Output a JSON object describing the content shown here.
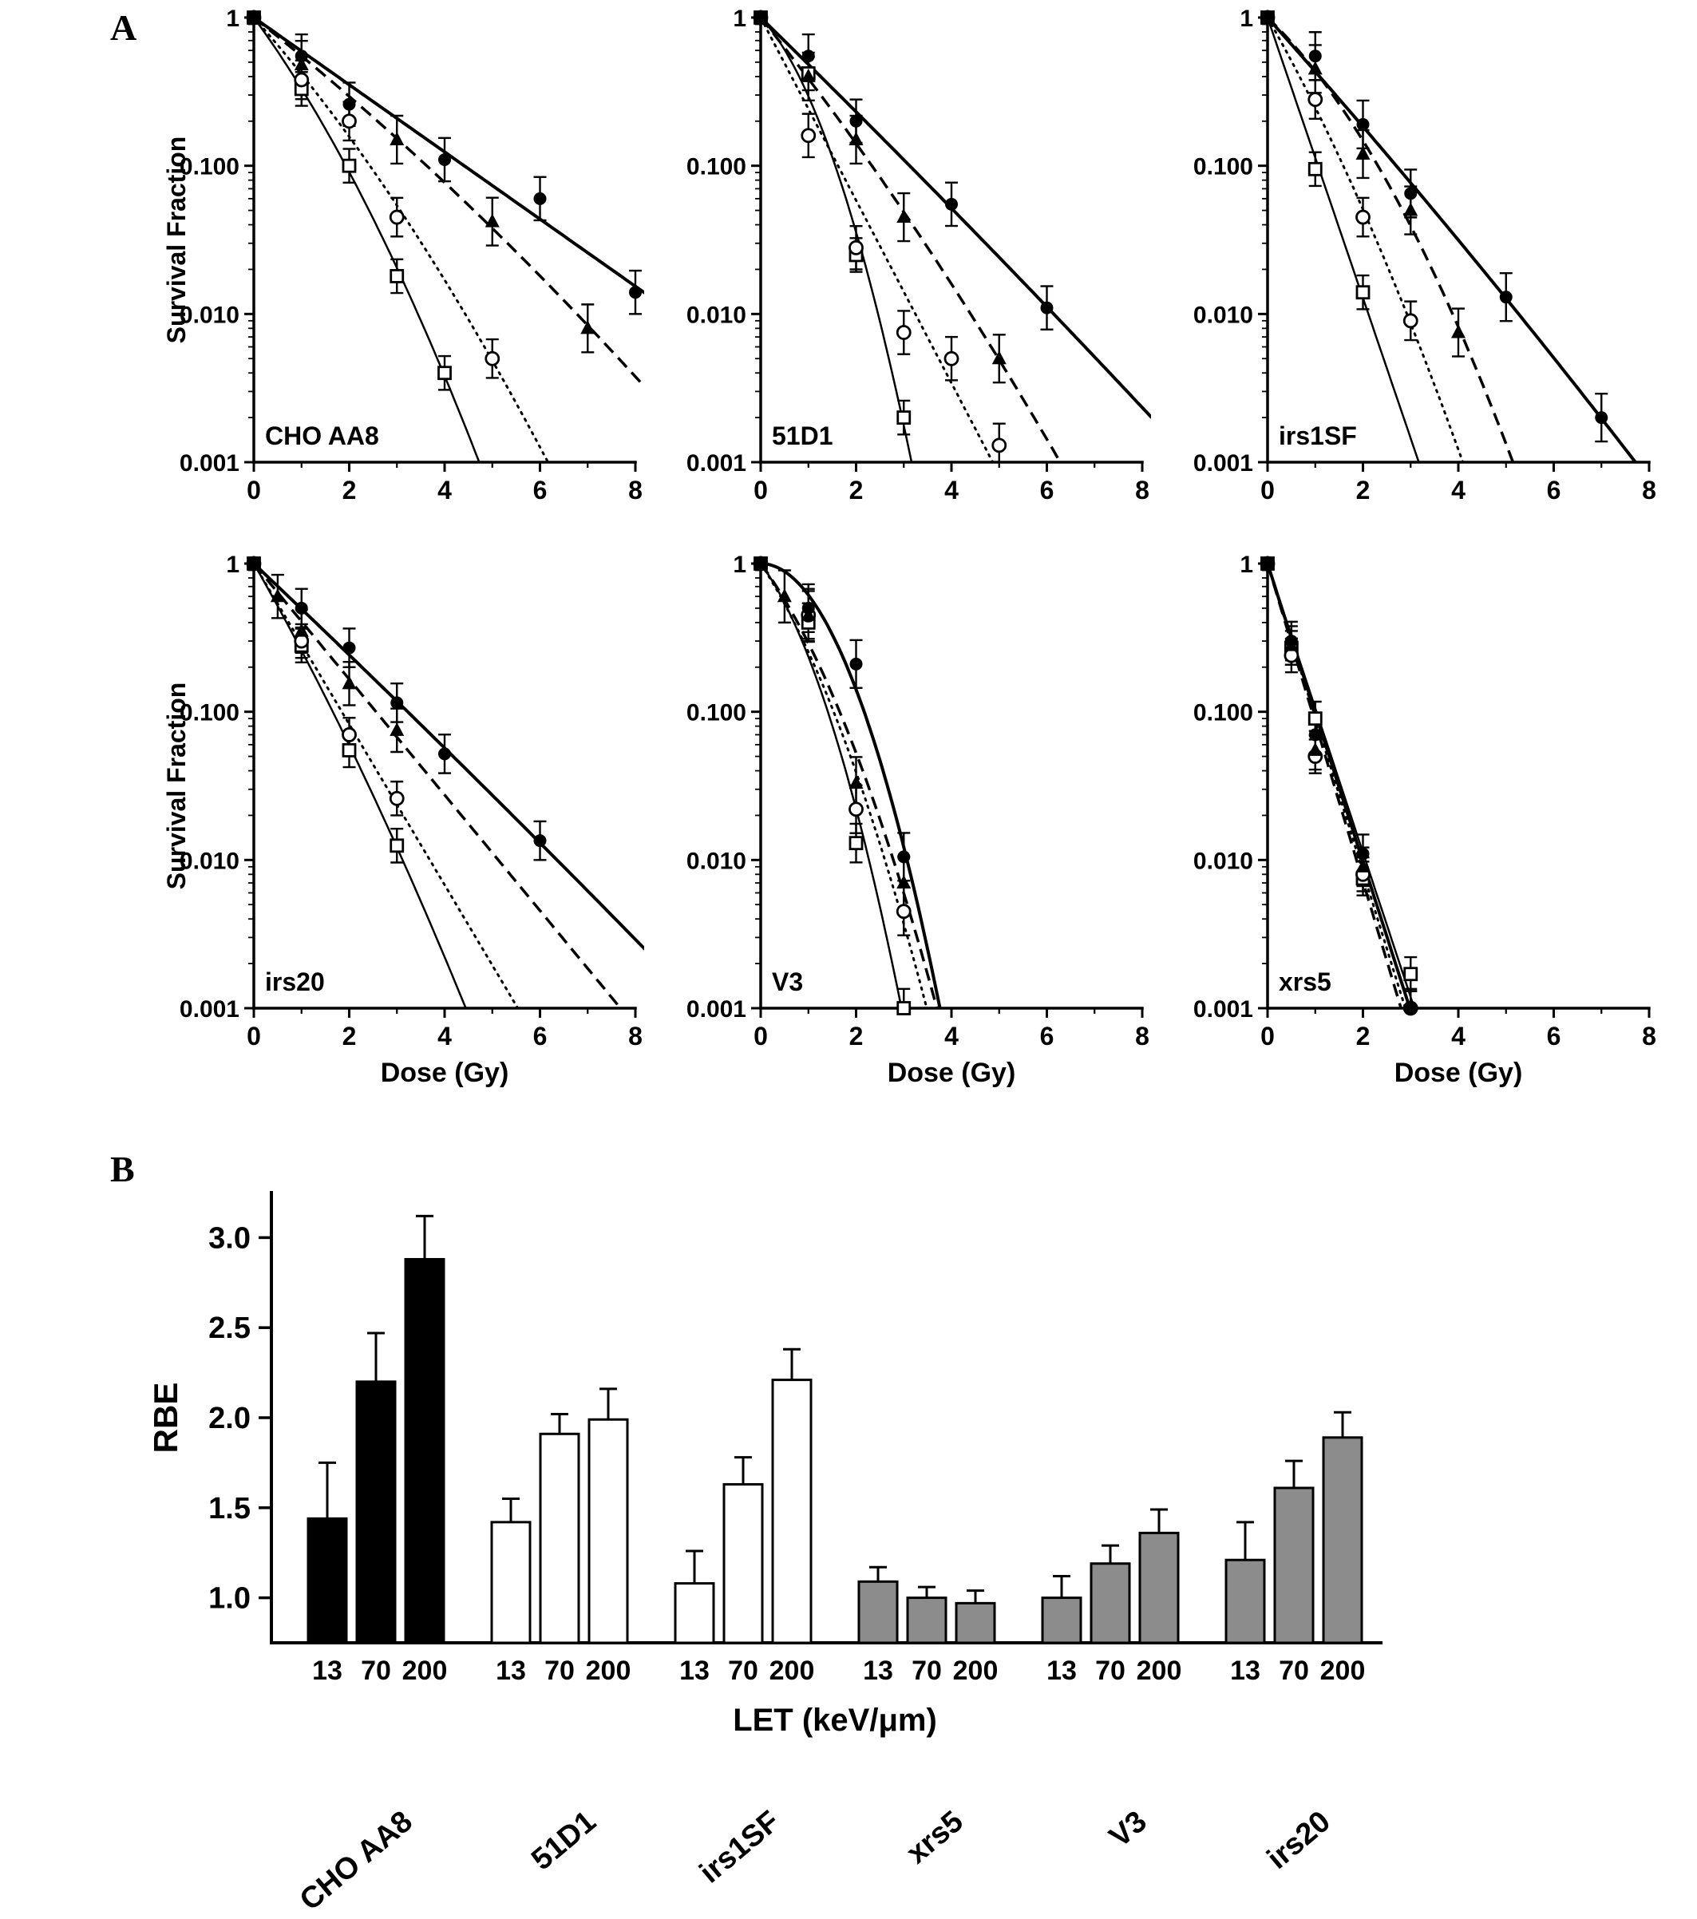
{
  "panels": {
    "a_label": "A",
    "b_label": "B"
  },
  "chart_data": [
    {
      "type": "line",
      "id": "cho-aa8",
      "title": "CHO AA8",
      "ylabel": "Survival Fraction",
      "show_ylabel": true,
      "show_xlabel": false,
      "xlabel": "",
      "xlim": [
        0,
        8
      ],
      "ylim": [
        0.001,
        1
      ],
      "yscale": "log",
      "xticks": [
        0,
        2,
        4,
        6,
        8
      ],
      "yticks": [
        1,
        0.1,
        0.01,
        0.001
      ],
      "ytick_labels": [
        "1",
        "0.100",
        "0.010",
        "0.001"
      ],
      "series": [
        {
          "name": "filled-circle-solid",
          "marker": "filled-circle",
          "line": "solid-thick",
          "x": [
            0,
            1,
            2,
            4,
            6,
            8
          ],
          "y": [
            1,
            0.55,
            0.26,
            0.11,
            0.06,
            0.014
          ],
          "err": 0.4
        },
        {
          "name": "filled-triangle-dashed",
          "marker": "filled-triangle",
          "line": "dashed",
          "x": [
            0,
            1,
            3,
            5,
            7
          ],
          "y": [
            1,
            0.48,
            0.15,
            0.042,
            0.008
          ],
          "err": 0.45
        },
        {
          "name": "open-circle-dotted",
          "marker": "open-circle",
          "line": "dotted",
          "x": [
            0,
            1,
            2,
            3,
            5
          ],
          "y": [
            1,
            0.38,
            0.2,
            0.045,
            0.005
          ],
          "err": 0.35
        },
        {
          "name": "open-square-solid",
          "marker": "open-square",
          "line": "solid-thin",
          "x": [
            0,
            1,
            2,
            3,
            4
          ],
          "y": [
            1,
            0.33,
            0.1,
            0.018,
            0.004
          ],
          "err": 0.3
        }
      ]
    },
    {
      "type": "line",
      "id": "51d1",
      "title": "51D1",
      "show_ylabel": false,
      "show_xlabel": false,
      "ylabel": "",
      "xlabel": "",
      "xlim": [
        0,
        8
      ],
      "ylim": [
        0.001,
        1
      ],
      "yscale": "log",
      "xticks": [
        0,
        2,
        4,
        6,
        8
      ],
      "yticks": [
        1,
        0.1,
        0.01,
        0.001
      ],
      "ytick_labels": [
        "1",
        "0.100",
        "0.010",
        "0.001"
      ],
      "series": [
        {
          "name": "filled-circle-solid",
          "marker": "filled-circle",
          "line": "solid-thick",
          "x": [
            0,
            1,
            2,
            4,
            6
          ],
          "y": [
            1,
            0.55,
            0.2,
            0.055,
            0.011
          ],
          "err": 0.4
        },
        {
          "name": "filled-triangle-dashed",
          "marker": "filled-triangle",
          "line": "dashed",
          "x": [
            0,
            1,
            2,
            3,
            5
          ],
          "y": [
            1,
            0.4,
            0.15,
            0.045,
            0.005
          ],
          "err": 0.45
        },
        {
          "name": "open-circle-dotted",
          "marker": "open-circle",
          "line": "dotted",
          "x": [
            0,
            1,
            2,
            3,
            4,
            5
          ],
          "y": [
            1,
            0.16,
            0.028,
            0.0075,
            0.005,
            0.0013
          ],
          "err": 0.4
        },
        {
          "name": "open-square-solid",
          "marker": "open-square",
          "line": "solid-thin",
          "x": [
            0,
            1,
            2,
            3
          ],
          "y": [
            1,
            0.42,
            0.025,
            0.002
          ],
          "err": 0.3
        }
      ]
    },
    {
      "type": "line",
      "id": "irs1sf",
      "title": "irs1SF",
      "show_ylabel": false,
      "show_xlabel": false,
      "ylabel": "",
      "xlabel": "",
      "xlim": [
        0,
        8
      ],
      "ylim": [
        0.001,
        1
      ],
      "yscale": "log",
      "xticks": [
        0,
        2,
        4,
        6,
        8
      ],
      "yticks": [
        1,
        0.1,
        0.01,
        0.001
      ],
      "ytick_labels": [
        "1",
        "0.100",
        "0.010",
        "0.001"
      ],
      "series": [
        {
          "name": "filled-circle-solid",
          "marker": "filled-circle",
          "line": "solid-thick",
          "x": [
            0,
            1,
            2,
            3,
            5,
            7
          ],
          "y": [
            1,
            0.55,
            0.19,
            0.065,
            0.013,
            0.002
          ],
          "err": 0.45
        },
        {
          "name": "filled-triangle-dashed",
          "marker": "filled-triangle",
          "line": "dashed",
          "x": [
            0,
            1,
            2,
            3,
            4
          ],
          "y": [
            1,
            0.45,
            0.12,
            0.05,
            0.0075
          ],
          "err": 0.45
        },
        {
          "name": "open-circle-dotted",
          "marker": "open-circle",
          "line": "dotted",
          "x": [
            0,
            1,
            2,
            3
          ],
          "y": [
            1,
            0.28,
            0.045,
            0.009
          ],
          "err": 0.35
        },
        {
          "name": "open-square-solid",
          "marker": "open-square",
          "line": "solid-thin",
          "x": [
            0,
            1,
            2
          ],
          "y": [
            1,
            0.095,
            0.014
          ],
          "err": 0.3
        }
      ]
    },
    {
      "type": "line",
      "id": "irs20",
      "title": "irs20",
      "ylabel": "Survival Fraction",
      "show_ylabel": true,
      "show_xlabel": true,
      "xlabel": "Dose (Gy)",
      "xlim": [
        0,
        8
      ],
      "ylim": [
        0.001,
        1
      ],
      "yscale": "log",
      "xticks": [
        0,
        2,
        4,
        6,
        8
      ],
      "yticks": [
        1,
        0.1,
        0.01,
        0.001
      ],
      "ytick_labels": [
        "1",
        "0.100",
        "0.010",
        "0.001"
      ],
      "series": [
        {
          "name": "filled-circle-solid",
          "marker": "filled-circle",
          "line": "solid-thick",
          "x": [
            0,
            1,
            2,
            3,
            4,
            6
          ],
          "y": [
            1,
            0.5,
            0.27,
            0.115,
            0.052,
            0.0135
          ],
          "err": 0.35
        },
        {
          "name": "filled-triangle-dashed",
          "marker": "filled-triangle",
          "line": "dashed",
          "x": [
            0,
            0.5,
            1,
            2,
            3
          ],
          "y": [
            1,
            0.6,
            0.35,
            0.155,
            0.075
          ],
          "err": 0.4
        },
        {
          "name": "open-circle-dotted",
          "marker": "open-circle",
          "line": "dotted",
          "x": [
            0,
            1,
            2,
            3
          ],
          "y": [
            1,
            0.3,
            0.07,
            0.026
          ],
          "err": 0.3
        },
        {
          "name": "open-square-solid",
          "marker": "open-square",
          "line": "solid-thin",
          "x": [
            0,
            1,
            2,
            3
          ],
          "y": [
            1,
            0.28,
            0.055,
            0.0125
          ],
          "err": 0.3
        }
      ]
    },
    {
      "type": "line",
      "id": "v3",
      "title": "V3",
      "show_ylabel": false,
      "show_xlabel": true,
      "ylabel": "",
      "xlabel": "Dose (Gy)",
      "xlim": [
        0,
        8
      ],
      "ylim": [
        0.001,
        1
      ],
      "yscale": "log",
      "xticks": [
        0,
        2,
        4,
        6,
        8
      ],
      "yticks": [
        1,
        0.1,
        0.01,
        0.001
      ],
      "ytick_labels": [
        "1",
        "0.100",
        "0.010",
        "0.001"
      ],
      "series": [
        {
          "name": "filled-circle-solid",
          "marker": "filled-circle",
          "line": "solid-thick",
          "x": [
            0,
            1,
            2,
            3
          ],
          "y": [
            1,
            0.5,
            0.21,
            0.0105
          ],
          "err": 0.45
        },
        {
          "name": "filled-triangle-dashed",
          "marker": "filled-triangle",
          "line": "dashed",
          "x": [
            0,
            0.5,
            1,
            2,
            3
          ],
          "y": [
            1,
            0.6,
            0.45,
            0.033,
            0.007
          ],
          "err": 0.5
        },
        {
          "name": "open-circle-dotted",
          "marker": "open-circle",
          "line": "dotted",
          "x": [
            0,
            1,
            2,
            3
          ],
          "y": [
            1,
            0.45,
            0.022,
            0.0045
          ],
          "err": 0.45
        },
        {
          "name": "open-square-solid",
          "marker": "open-square",
          "line": "solid-thin",
          "x": [
            0,
            1,
            2,
            3
          ],
          "y": [
            1,
            0.4,
            0.013,
            0.001
          ],
          "err": 0.35
        }
      ]
    },
    {
      "type": "line",
      "id": "xrs5",
      "title": "xrs5",
      "show_ylabel": false,
      "show_xlabel": true,
      "ylabel": "",
      "xlabel": "Dose (Gy)",
      "xlim": [
        0,
        8
      ],
      "ylim": [
        0.001,
        1
      ],
      "yscale": "log",
      "xticks": [
        0,
        2,
        4,
        6,
        8
      ],
      "yticks": [
        1,
        0.1,
        0.01,
        0.001
      ],
      "ytick_labels": [
        "1",
        "0.100",
        "0.010",
        "0.001"
      ],
      "series": [
        {
          "name": "filled-circle-solid",
          "marker": "filled-circle",
          "line": "solid-thick",
          "x": [
            0,
            0.5,
            1,
            2,
            3
          ],
          "y": [
            1,
            0.3,
            0.07,
            0.011,
            0.001
          ],
          "err": 0.35
        },
        {
          "name": "filled-triangle-dashed",
          "marker": "filled-triangle",
          "line": "dashed",
          "x": [
            0,
            0.5,
            1,
            2
          ],
          "y": [
            1,
            0.28,
            0.055,
            0.009
          ],
          "err": 0.35
        },
        {
          "name": "open-circle-dotted",
          "marker": "open-circle",
          "line": "dotted",
          "x": [
            0,
            0.5,
            1,
            2,
            3
          ],
          "y": [
            1,
            0.24,
            0.05,
            0.008,
            0.001
          ],
          "err": 0.3
        },
        {
          "name": "open-square-solid",
          "marker": "open-square",
          "line": "solid-thin",
          "x": [
            0,
            0.5,
            1,
            2,
            3
          ],
          "y": [
            1,
            0.27,
            0.09,
            0.0075,
            0.0017
          ],
          "err": 0.3
        }
      ]
    },
    {
      "type": "bar",
      "id": "rbe-bars",
      "ylabel": "RBE",
      "xlabel": "LET (keV/μm)",
      "ylim": [
        0.75,
        3.25
      ],
      "yticks": [
        1.0,
        1.5,
        2.0,
        2.5,
        3.0
      ],
      "ytick_labels": [
        "1.0",
        "1.5",
        "2.0",
        "2.5",
        "3.0"
      ],
      "let_labels": [
        "13",
        "70",
        "200"
      ],
      "colors": {
        "black": "#000000",
        "white": "#ffffff",
        "gray": "#8c8c8c"
      },
      "groups": [
        {
          "name": "CHO AA8",
          "fill": "#000000",
          "values": [
            1.44,
            2.2,
            2.88
          ],
          "errors": [
            0.31,
            0.27,
            0.24
          ]
        },
        {
          "name": "51D1",
          "fill": "#ffffff",
          "values": [
            1.42,
            1.91,
            1.99
          ],
          "errors": [
            0.13,
            0.11,
            0.17
          ]
        },
        {
          "name": "irs1SF",
          "fill": "#ffffff",
          "values": [
            1.08,
            1.63,
            2.21
          ],
          "errors": [
            0.18,
            0.15,
            0.17
          ]
        },
        {
          "name": "xrs5",
          "fill": "#8c8c8c",
          "values": [
            1.09,
            1.0,
            0.97
          ],
          "errors": [
            0.08,
            0.06,
            0.07
          ]
        },
        {
          "name": "V3",
          "fill": "#8c8c8c",
          "values": [
            1.0,
            1.19,
            1.36
          ],
          "errors": [
            0.12,
            0.1,
            0.13
          ]
        },
        {
          "name": "irs20",
          "fill": "#8c8c8c",
          "values": [
            1.21,
            1.61,
            1.89
          ],
          "errors": [
            0.21,
            0.15,
            0.14
          ]
        }
      ]
    }
  ]
}
